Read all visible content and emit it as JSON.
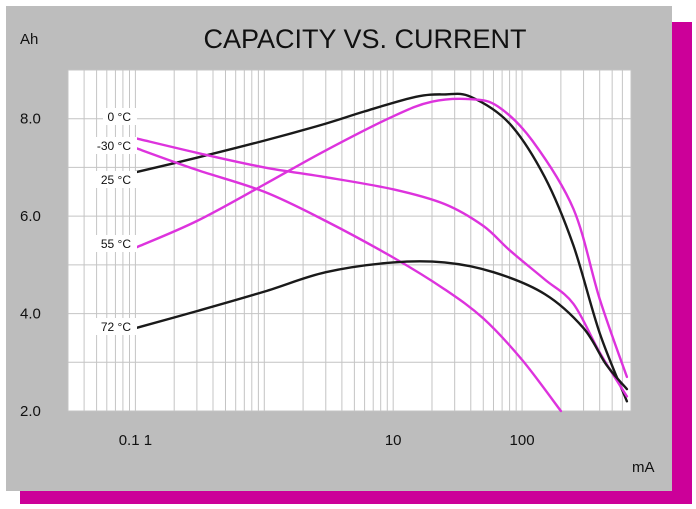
{
  "colors": {
    "panel": "#bdbdbd",
    "shadow": "#cc0099",
    "plot_bg": "#ffffff",
    "grid": "#c4c4c4",
    "black_series": "#1a1a1a",
    "magenta_series": "#dd33dd"
  },
  "chart_data": {
    "type": "line",
    "title": "CAPACITY VS. CURRENT",
    "ylabel": "Ah",
    "xlabel": "mA",
    "x_scale": "log",
    "xlim": [
      0.03,
      700
    ],
    "ylim": [
      2.0,
      9.0
    ],
    "y_ticks": [
      {
        "value": 2.0,
        "label": "2.0"
      },
      {
        "value": 4.0,
        "label": "4.0"
      },
      {
        "value": 6.0,
        "label": "6.0"
      },
      {
        "value": 8.0,
        "label": "8.0"
      }
    ],
    "x_ticks": [
      {
        "value": 0.1,
        "label": "0.1 1"
      },
      {
        "value": 10,
        "label": "10"
      },
      {
        "value": 100,
        "label": "100"
      }
    ],
    "grid": true,
    "series": [
      {
        "name": "0 °C",
        "color": "black",
        "x": [
          0.1,
          0.3,
          1,
          3,
          6,
          15,
          25,
          40,
          80,
          150,
          250,
          400,
          650
        ],
        "y": [
          6.9,
          7.2,
          7.55,
          7.9,
          8.15,
          8.45,
          8.5,
          8.45,
          7.9,
          6.8,
          5.4,
          3.6,
          2.2
        ]
      },
      {
        "name": "-30 °C",
        "color": "magenta",
        "x": [
          0.1,
          0.3,
          1,
          3,
          10,
          25,
          50,
          80,
          150,
          250,
          400,
          650
        ],
        "y": [
          7.6,
          7.3,
          7.0,
          6.8,
          6.55,
          6.25,
          5.8,
          5.3,
          4.7,
          4.2,
          3.2,
          2.3
        ]
      },
      {
        "name": "25 °C",
        "color": "magenta",
        "x": [
          0.1,
          0.3,
          1,
          3,
          10,
          25,
          50,
          100,
          200
        ],
        "y": [
          7.4,
          6.95,
          6.5,
          5.9,
          5.15,
          4.5,
          3.9,
          3.05,
          2.0
        ]
      },
      {
        "name": "55 °C",
        "color": "magenta",
        "x": [
          0.1,
          0.3,
          1,
          3,
          10,
          20,
          40,
          65,
          120,
          250,
          400,
          650
        ],
        "y": [
          5.35,
          5.9,
          6.65,
          7.35,
          8.05,
          8.35,
          8.4,
          8.25,
          7.55,
          6.15,
          4.3,
          2.7
        ]
      },
      {
        "name": "72 °C",
        "color": "black",
        "x": [
          0.1,
          0.3,
          1,
          3,
          10,
          25,
          60,
          150,
          300,
          450,
          650
        ],
        "y": [
          3.7,
          4.05,
          4.45,
          4.85,
          5.05,
          5.05,
          4.85,
          4.4,
          3.7,
          2.95,
          2.45
        ]
      }
    ]
  }
}
